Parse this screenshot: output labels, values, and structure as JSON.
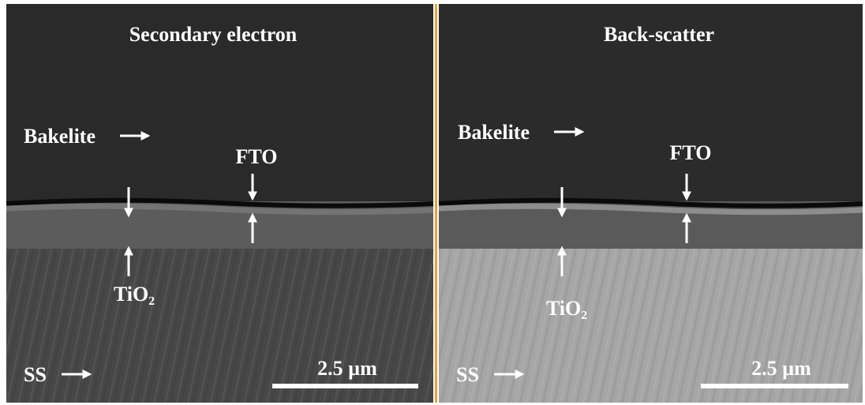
{
  "panels": [
    {
      "title": "Secondary electron",
      "bakelite": "Bakelite",
      "fto": "FTO",
      "tio2": "TiO₂",
      "ss": "SS",
      "scale": "2.5 µm"
    },
    {
      "title": "Back-scatter",
      "bakelite": "Bakelite",
      "fto": "FTO",
      "tio2": "TiO₂",
      "ss": "SS",
      "scale": "2.5 µm"
    }
  ]
}
